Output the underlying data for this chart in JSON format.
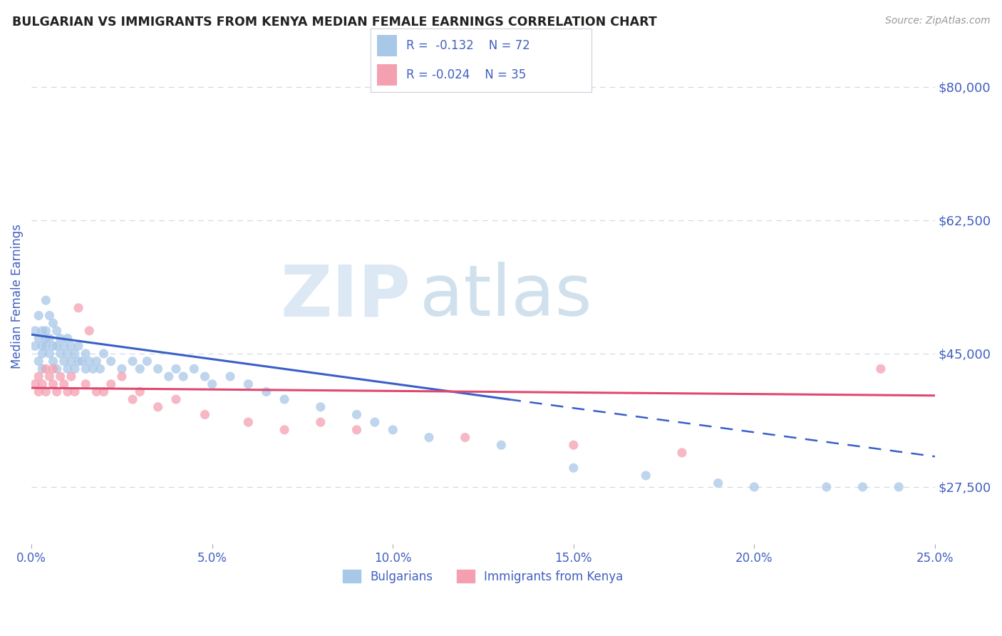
{
  "title": "BULGARIAN VS IMMIGRANTS FROM KENYA MEDIAN FEMALE EARNINGS CORRELATION CHART",
  "source": "Source: ZipAtlas.com",
  "ylabel": "Median Female Earnings",
  "xlim": [
    0.0,
    0.25
  ],
  "ylim": [
    20000,
    85000
  ],
  "yticks": [
    27500,
    45000,
    62500,
    80000
  ],
  "ytick_labels": [
    "$27,500",
    "$45,000",
    "$62,500",
    "$80,000"
  ],
  "xticks": [
    0.0,
    0.05,
    0.1,
    0.15,
    0.2,
    0.25
  ],
  "xtick_labels": [
    "0.0%",
    "5.0%",
    "10.0%",
    "15.0%",
    "20.0%",
    "25.0%"
  ],
  "legend_label1": "Bulgarians",
  "legend_label2": "Immigrants from Kenya",
  "color_bulgarian": "#a8c8e8",
  "color_kenya": "#f4a0b0",
  "color_trend_bulgarian": "#3a5fc8",
  "color_trend_kenya": "#e04870",
  "color_text": "#4060c0",
  "color_axis_labels": "#4060c0",
  "watermark_zip": "ZIP",
  "watermark_atlas": "atlas",
  "bg_color": "#ffffff",
  "grid_color": "#d0d8e8",
  "R1": -0.132,
  "N1": 72,
  "R2": -0.024,
  "N2": 35,
  "bulg_x": [
    0.001,
    0.001,
    0.002,
    0.002,
    0.002,
    0.003,
    0.003,
    0.003,
    0.003,
    0.004,
    0.004,
    0.004,
    0.004,
    0.005,
    0.005,
    0.005,
    0.006,
    0.006,
    0.006,
    0.007,
    0.007,
    0.007,
    0.008,
    0.008,
    0.009,
    0.009,
    0.01,
    0.01,
    0.01,
    0.011,
    0.011,
    0.012,
    0.012,
    0.013,
    0.013,
    0.014,
    0.015,
    0.015,
    0.016,
    0.017,
    0.018,
    0.019,
    0.02,
    0.022,
    0.025,
    0.028,
    0.03,
    0.032,
    0.035,
    0.038,
    0.04,
    0.042,
    0.045,
    0.048,
    0.05,
    0.055,
    0.06,
    0.065,
    0.07,
    0.08,
    0.09,
    0.095,
    0.1,
    0.11,
    0.13,
    0.15,
    0.17,
    0.19,
    0.2,
    0.22,
    0.23,
    0.24
  ],
  "bulg_y": [
    46000,
    48000,
    44000,
    47000,
    50000,
    45000,
    46000,
    48000,
    43000,
    47000,
    46000,
    48000,
    52000,
    45000,
    50000,
    47000,
    46000,
    49000,
    44000,
    48000,
    46000,
    43000,
    47000,
    45000,
    46000,
    44000,
    45000,
    47000,
    43000,
    46000,
    44000,
    45000,
    43000,
    46000,
    44000,
    44000,
    45000,
    43000,
    44000,
    43000,
    44000,
    43000,
    45000,
    44000,
    43000,
    44000,
    43000,
    44000,
    43000,
    42000,
    43000,
    42000,
    43000,
    42000,
    41000,
    42000,
    41000,
    40000,
    39000,
    38000,
    37000,
    36000,
    35000,
    34000,
    33000,
    30000,
    29000,
    28000,
    27500,
    27500,
    27500,
    27500
  ],
  "kenya_x": [
    0.001,
    0.002,
    0.002,
    0.003,
    0.004,
    0.004,
    0.005,
    0.006,
    0.006,
    0.007,
    0.008,
    0.009,
    0.01,
    0.011,
    0.012,
    0.013,
    0.015,
    0.016,
    0.018,
    0.02,
    0.022,
    0.025,
    0.028,
    0.03,
    0.035,
    0.04,
    0.048,
    0.06,
    0.07,
    0.08,
    0.09,
    0.12,
    0.15,
    0.18,
    0.235
  ],
  "kenya_y": [
    41000,
    40000,
    42000,
    41000,
    43000,
    40000,
    42000,
    41000,
    43000,
    40000,
    42000,
    41000,
    40000,
    42000,
    40000,
    51000,
    41000,
    48000,
    40000,
    40000,
    41000,
    42000,
    39000,
    40000,
    38000,
    39000,
    37000,
    36000,
    35000,
    36000,
    35000,
    34000,
    33000,
    32000,
    43000
  ],
  "trend_b_x0": 0.0,
  "trend_b_x1": 0.132,
  "trend_b_y0": 47500,
  "trend_b_y1": 39000,
  "trend_b_dash_x0": 0.132,
  "trend_b_dash_x1": 0.25,
  "trend_b_dash_y0": 39000,
  "trend_b_dash_y1": 31500,
  "trend_k_x0": 0.0,
  "trend_k_x1": 0.25,
  "trend_k_y0": 40500,
  "trend_k_y1": 39500
}
